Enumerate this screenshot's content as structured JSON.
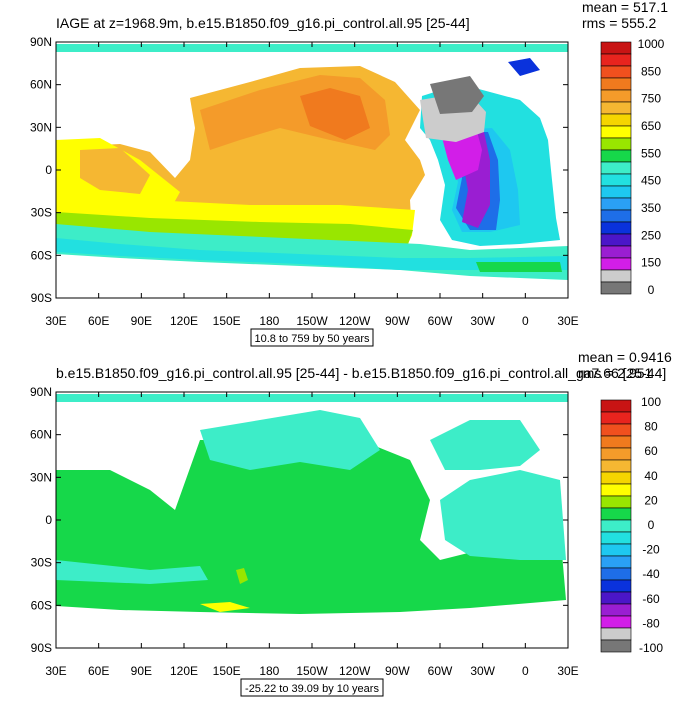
{
  "panels": [
    {
      "title": "IAGE at z=1968.9m, b.e15.B1850.f09_g16.pi_control.all.95 [25-44]",
      "stats": [
        "mean = 517.1",
        "rms = 555.2"
      ],
      "range_label": "10.8 to 759 by 50 years",
      "colorbar_labels": [
        "1000",
        "850",
        "750",
        "650",
        "550",
        "450",
        "350",
        "250",
        "150",
        "0"
      ],
      "colorbar_colors": [
        "#c81414",
        "#e8241e",
        "#f0501e",
        "#f07a1e",
        "#f49b2a",
        "#f5b732",
        "#f5d500",
        "#ffff00",
        "#99e600",
        "#16d84a",
        "#3dedc8",
        "#22e0e0",
        "#1ec8f0",
        "#2aa0f5",
        "#1e6ee8",
        "#0a32dc",
        "#4b16c8",
        "#9a1ed2",
        "#d21ee8",
        "#cccccc",
        "#777777"
      ]
    },
    {
      "title": "b.e15.B1850.f09_g16.pi_control.all.95 [25-44] - b.e15.B1850.f09_g16.pi_control.all_ga7.66 [25-44]",
      "stats": [
        "mean = 0.9416",
        "rms = 2.951"
      ],
      "range_label": "-25.22 to 39.09 by 10 years",
      "colorbar_labels": [
        "100",
        "80",
        "60",
        "40",
        "20",
        "0",
        "-20",
        "-40",
        "-60",
        "-80",
        "-100"
      ],
      "colorbar_colors": [
        "#c81414",
        "#e8241e",
        "#f0501e",
        "#f07a1e",
        "#f49b2a",
        "#f5b732",
        "#f5d500",
        "#ffff00",
        "#99e600",
        "#16d84a",
        "#3dedc8",
        "#22e0e0",
        "#1ec8f0",
        "#2aa0f5",
        "#1e6ee8",
        "#0a32dc",
        "#4b16c8",
        "#9a1ed2",
        "#d21ee8",
        "#cccccc",
        "#777777"
      ]
    }
  ],
  "chart_data": [
    {
      "type": "heatmap",
      "title": "IAGE at z=1968.9m, b.e15.B1850.f09_g16.pi_control.all.95 [25-44]",
      "x_tick_labels": [
        "30E",
        "60E",
        "90E",
        "120E",
        "150E",
        "180",
        "150W",
        "120W",
        "90W",
        "60W",
        "30W",
        "0",
        "30E"
      ],
      "y_tick_labels": [
        "90N",
        "60N",
        "30N",
        "0",
        "30S",
        "60S",
        "90S"
      ],
      "xlim": [
        30,
        390
      ],
      "ylim": [
        -90,
        90
      ],
      "contour_levels": [
        0,
        150,
        250,
        350,
        450,
        550,
        650,
        750,
        850,
        1000
      ],
      "mean": 517.1,
      "rms": 555.2
    },
    {
      "type": "heatmap",
      "title": "b.e15.B1850.f09_g16.pi_control.all.95 [25-44] - b.e15.B1850.f09_g16.pi_control.all_ga7.66 [25-44]",
      "x_tick_labels": [
        "30E",
        "60E",
        "90E",
        "120E",
        "150E",
        "180",
        "150W",
        "120W",
        "90W",
        "60W",
        "30W",
        "0",
        "30E"
      ],
      "y_tick_labels": [
        "90N",
        "60N",
        "30N",
        "0",
        "30S",
        "60S",
        "90S"
      ],
      "xlim": [
        30,
        390
      ],
      "ylim": [
        -90,
        90
      ],
      "contour_levels": [
        -100,
        -80,
        -60,
        -40,
        -20,
        0,
        20,
        40,
        60,
        80,
        100
      ],
      "mean": 0.9416,
      "rms": 2.951
    }
  ]
}
